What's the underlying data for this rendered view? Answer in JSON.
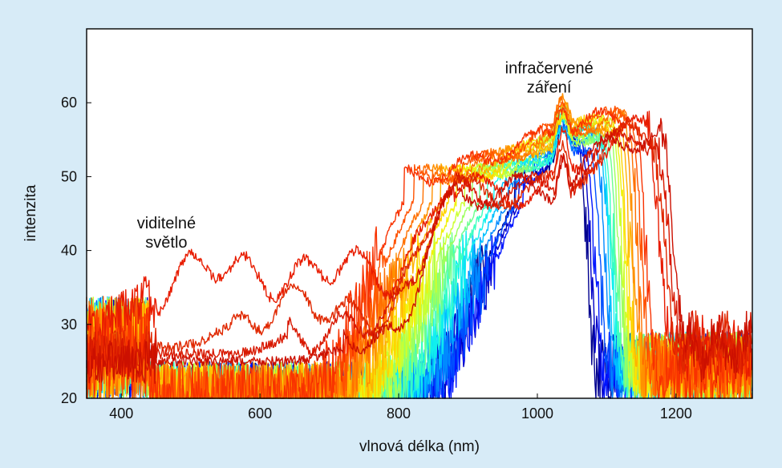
{
  "chart_data": {
    "type": "line",
    "xlabel": "vlnová délka (nm)",
    "ylabel": "intenzita",
    "xlim": [
      350,
      1310
    ],
    "ylim": [
      20,
      70
    ],
    "xticks": [
      400,
      600,
      800,
      1000,
      1200
    ],
    "yticks": [
      20,
      30,
      40,
      50,
      60
    ],
    "grid": false,
    "legend": "none",
    "annotations": [
      {
        "lines": [
          "viditelné",
          "světlo"
        ],
        "x": 465,
        "y": 43
      },
      {
        "lines": [
          "infračervené",
          "záření"
        ],
        "x": 1017,
        "y": 64
      }
    ],
    "series_style": "hue gradient from dark blue (shortest cut-on) to red (longest reach)",
    "series_count": 22,
    "series": [
      {
        "color": "#00008f",
        "edge_nm": 968,
        "end_nm": 1068,
        "ir_peak": 53.5
      },
      {
        "color": "#0000c8",
        "edge_nm": 974,
        "end_nm": 1074,
        "ir_peak": 54
      },
      {
        "color": "#0015ff",
        "edge_nm": 980,
        "end_nm": 1080,
        "ir_peak": 54
      },
      {
        "color": "#0050ff",
        "edge_nm": 969,
        "end_nm": 1086,
        "ir_peak": 54.5
      },
      {
        "color": "#008aff",
        "edge_nm": 958,
        "end_nm": 1092,
        "ir_peak": 55
      },
      {
        "color": "#00c0ff",
        "edge_nm": 948,
        "end_nm": 1098,
        "ir_peak": 55
      },
      {
        "color": "#10f0ee",
        "edge_nm": 938,
        "end_nm": 1102,
        "ir_peak": 55.5
      },
      {
        "color": "#3dffc0",
        "edge_nm": 928,
        "end_nm": 1106,
        "ir_peak": 55.5
      },
      {
        "color": "#6cff8e",
        "edge_nm": 917,
        "end_nm": 1110,
        "ir_peak": 56
      },
      {
        "color": "#9dff5e",
        "edge_nm": 906,
        "end_nm": 1114,
        "ir_peak": 56
      },
      {
        "color": "#ccff30",
        "edge_nm": 895,
        "end_nm": 1118,
        "ir_peak": 56.5
      },
      {
        "color": "#f1f20c",
        "edge_nm": 884,
        "end_nm": 1122,
        "ir_peak": 57
      },
      {
        "color": "#ffd400",
        "edge_nm": 873,
        "end_nm": 1126,
        "ir_peak": 57
      },
      {
        "color": "#ffb200",
        "edge_nm": 861,
        "end_nm": 1130,
        "ir_peak": 57
      },
      {
        "color": "#ff9000",
        "edge_nm": 849,
        "end_nm": 1134,
        "ir_peak": 57.5
      },
      {
        "color": "#ff7000",
        "edge_nm": 836,
        "end_nm": 1140,
        "ir_peak": 57.5
      },
      {
        "color": "#ff5200",
        "edge_nm": 822,
        "end_nm": 1146,
        "ir_peak": 58
      },
      {
        "color": "#f83200",
        "edge_nm": 808,
        "end_nm": 1152,
        "ir_peak": 58
      },
      {
        "color": "#e81c00",
        "edge_nm": 0,
        "end_nm": 1158,
        "ir_peak": 58,
        "broadband": 1
      },
      {
        "color": "#e02800",
        "edge_nm": 0,
        "end_nm": 1166,
        "ir_peak": 57.5,
        "broadband": 2
      },
      {
        "color": "#d81800",
        "edge_nm": 0,
        "end_nm": 1172,
        "ir_peak": 57.5,
        "broadband": 3
      },
      {
        "color": "#cc1000",
        "edge_nm": 0,
        "end_nm": 1178,
        "ir_peak": 58,
        "broadband": 4
      }
    ]
  }
}
